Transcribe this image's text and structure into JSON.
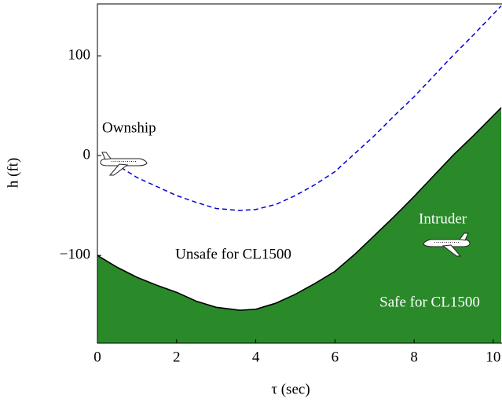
{
  "chart_data": {
    "type": "line",
    "xlabel": "τ (sec)",
    "ylabel": "h (ft)",
    "xlim": [
      0,
      10.2
    ],
    "ylim": [
      -188,
      152
    ],
    "xticks": [
      0,
      2,
      4,
      6,
      8,
      10
    ],
    "yticks": [
      {
        "value": -100,
        "label": "−100"
      },
      0,
      100
    ],
    "series": [
      {
        "color": "#000000",
        "fill": "#2a8a2a",
        "style": "solid",
        "x": [
          0,
          0.5,
          1,
          1.5,
          2,
          2.5,
          3,
          3.6,
          4,
          4.5,
          5,
          5.5,
          6,
          6.5,
          7,
          7.5,
          8,
          8.5,
          9,
          9.5,
          10.2
        ],
        "values": [
          -100,
          -112,
          -122,
          -130,
          -137,
          -146,
          -152,
          -155,
          -154,
          -148,
          -139,
          -128,
          -116,
          -99,
          -80,
          -61,
          -41,
          -20,
          1,
          20,
          48
        ]
      },
      {
        "color": "#0000dd",
        "style": "dashed",
        "x": [
          0.6,
          1,
          1.5,
          2,
          2.5,
          3,
          3.6,
          4,
          4.5,
          5,
          5.5,
          6,
          6.5,
          7,
          7.5,
          8,
          8.5,
          9,
          9.5,
          10.2
        ],
        "values": [
          -12,
          -22,
          -31,
          -40,
          -47,
          -53,
          -55,
          -54,
          -49,
          -40,
          -29,
          -16,
          2,
          20,
          40,
          59,
          80,
          101,
          121,
          150
        ]
      }
    ],
    "annotations": [
      "Ownship",
      "Intruder",
      "Unsafe for CL1500",
      "Safe for CL1500"
    ]
  }
}
